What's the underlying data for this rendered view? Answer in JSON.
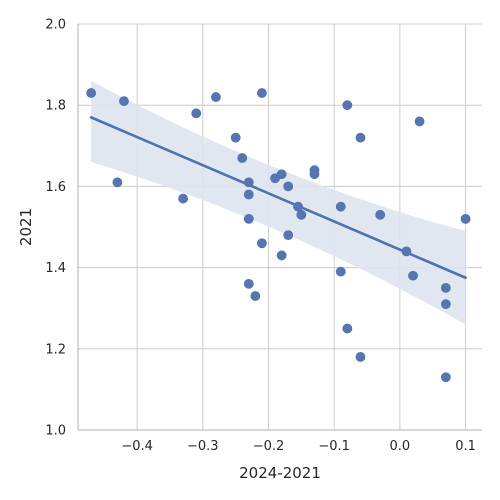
{
  "chart_data": {
    "type": "scatter",
    "xlabel": "2024-2021",
    "ylabel": "2021",
    "xlim": [
      -0.49,
      0.125
    ],
    "ylim": [
      1.0,
      2.0
    ],
    "x_ticks": [
      -0.4,
      -0.3,
      -0.2,
      -0.1,
      0.0,
      0.1
    ],
    "x_tick_labels": [
      "−0.4",
      "−0.3",
      "−0.2",
      "−0.1",
      "0.0",
      "0.1"
    ],
    "y_ticks": [
      1.0,
      1.2,
      1.4,
      1.6,
      1.8,
      2.0
    ],
    "y_tick_labels": [
      "1.0",
      "1.2",
      "1.4",
      "1.6",
      "1.8",
      "2.0"
    ],
    "grid": true,
    "point_color": "#5875b0",
    "line_color": "#4c72b0",
    "band_color": "#dde4f0",
    "points": [
      {
        "x": -0.47,
        "y": 1.83
      },
      {
        "x": -0.42,
        "y": 1.81
      },
      {
        "x": -0.43,
        "y": 1.61
      },
      {
        "x": -0.33,
        "y": 1.57
      },
      {
        "x": -0.31,
        "y": 1.78
      },
      {
        "x": -0.28,
        "y": 1.82
      },
      {
        "x": -0.25,
        "y": 1.72
      },
      {
        "x": -0.24,
        "y": 1.67
      },
      {
        "x": -0.23,
        "y": 1.61
      },
      {
        "x": -0.23,
        "y": 1.58
      },
      {
        "x": -0.23,
        "y": 1.52
      },
      {
        "x": -0.23,
        "y": 1.36
      },
      {
        "x": -0.22,
        "y": 1.33
      },
      {
        "x": -0.21,
        "y": 1.83
      },
      {
        "x": -0.21,
        "y": 1.46
      },
      {
        "x": -0.19,
        "y": 1.62
      },
      {
        "x": -0.18,
        "y": 1.63
      },
      {
        "x": -0.18,
        "y": 1.43
      },
      {
        "x": -0.17,
        "y": 1.6
      },
      {
        "x": -0.17,
        "y": 1.48
      },
      {
        "x": -0.155,
        "y": 1.55
      },
      {
        "x": -0.15,
        "y": 1.53
      },
      {
        "x": -0.13,
        "y": 1.64
      },
      {
        "x": -0.13,
        "y": 1.63
      },
      {
        "x": -0.09,
        "y": 1.55
      },
      {
        "x": -0.09,
        "y": 1.39
      },
      {
        "x": -0.08,
        "y": 1.8
      },
      {
        "x": -0.08,
        "y": 1.25
      },
      {
        "x": -0.06,
        "y": 1.72
      },
      {
        "x": -0.06,
        "y": 1.18
      },
      {
        "x": -0.03,
        "y": 1.53
      },
      {
        "x": 0.01,
        "y": 1.44
      },
      {
        "x": 0.02,
        "y": 1.38
      },
      {
        "x": 0.03,
        "y": 1.76
      },
      {
        "x": 0.07,
        "y": 1.35
      },
      {
        "x": 0.07,
        "y": 1.31
      },
      {
        "x": 0.07,
        "y": 1.13
      },
      {
        "x": 0.1,
        "y": 1.52
      }
    ],
    "regression": {
      "x": [
        -0.47,
        0.1
      ],
      "y": [
        1.77,
        1.375
      ],
      "ci_upper": [
        1.86,
        1.49
      ],
      "ci_lower": [
        1.66,
        1.26
      ],
      "ci_mid_x": -0.19,
      "ci_mid_upper": 1.6,
      "ci_mid_lower": 1.54
    }
  }
}
